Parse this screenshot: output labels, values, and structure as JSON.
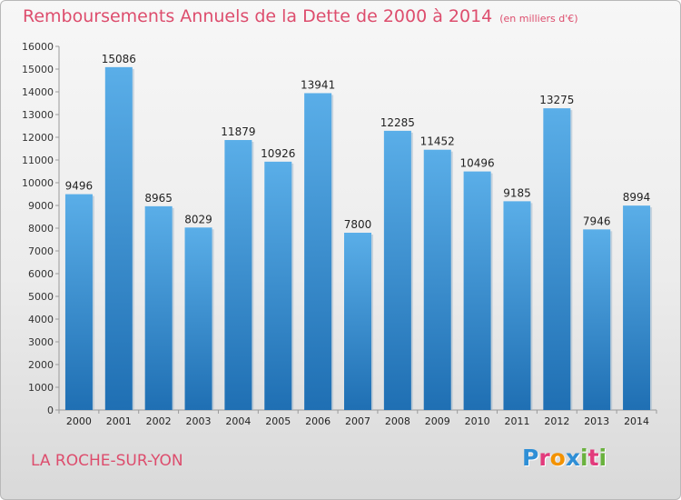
{
  "header": {
    "title": "Remboursements Annuels de la Dette de 2000 à 2014",
    "units": "(en milliers d'€)"
  },
  "footer": {
    "city": "LA ROCHE-SUR-YON",
    "brand_letters": [
      "P",
      "r",
      "o",
      "x",
      "i",
      "t",
      "i"
    ],
    "brand_colors": [
      "#2f8fd6",
      "#e23b7c",
      "#f39200",
      "#2f8fd6",
      "#6ab23e",
      "#e23b7c",
      "#6ab23e"
    ]
  },
  "colors": {
    "bar_light": "#5aaee8",
    "bar_dark": "#1f6fb3",
    "accent": "#dd4d6d"
  },
  "chart_data": {
    "type": "bar",
    "title": "Remboursements Annuels de la Dette de 2000 à 2014",
    "xlabel": "",
    "ylabel": "",
    "ylim": [
      0,
      16000
    ],
    "yticks": [
      0,
      1000,
      2000,
      3000,
      4000,
      5000,
      6000,
      7000,
      8000,
      9000,
      10000,
      11000,
      12000,
      13000,
      14000,
      15000,
      16000
    ],
    "grid": false,
    "categories": [
      "2000",
      "2001",
      "2002",
      "2003",
      "2004",
      "2005",
      "2006",
      "2007",
      "2008",
      "2009",
      "2010",
      "2011",
      "2012",
      "2013",
      "2014"
    ],
    "values": [
      9496,
      15086,
      8965,
      8029,
      11879,
      10926,
      13941,
      7800,
      12285,
      11452,
      10496,
      9185,
      13275,
      7946,
      8994
    ]
  }
}
